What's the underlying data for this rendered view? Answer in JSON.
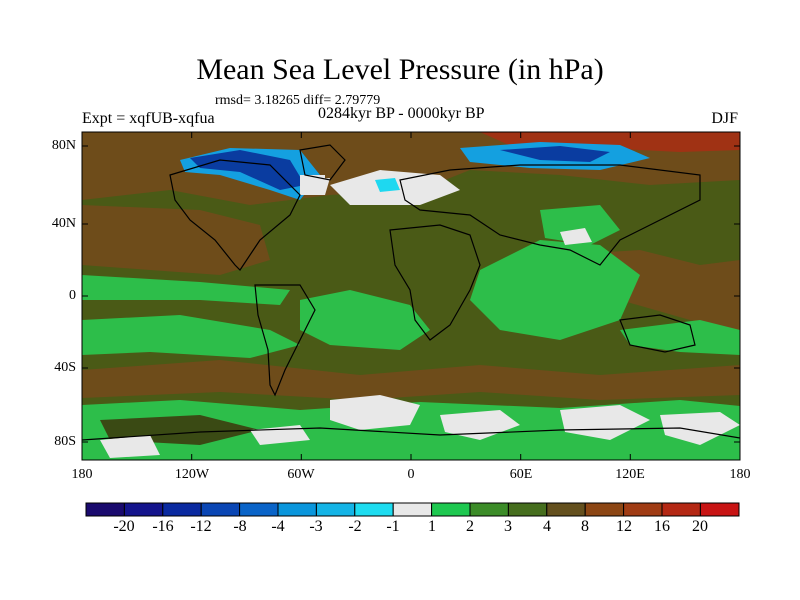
{
  "title": "Mean Sea Level Pressure (in hPa)",
  "stats": "rmsd= 3.18265 diff= 2.79779",
  "experiment": "Expt = xqfUB-xqfua",
  "period": "0284kyr BP - 0000kyr BP",
  "season": "DJF",
  "y_axis_labels": [
    "80N",
    "40N",
    "0",
    "40S",
    "80S"
  ],
  "x_axis_labels": [
    "180",
    "120W",
    "60W",
    "0",
    "60E",
    "120E",
    "180"
  ],
  "colorbar": {
    "labels": [
      "-20",
      "-16",
      "-12",
      "-8",
      "-4",
      "-3",
      "-2",
      "-1",
      "1",
      "2",
      "3",
      "4",
      "8",
      "12",
      "16",
      "20"
    ],
    "colors": [
      "#1a0a6e",
      "#14148c",
      "#0a2aa0",
      "#0a46b4",
      "#0a64c8",
      "#0a96dc",
      "#14b4e6",
      "#1edcf0",
      "#e8e8e8",
      "#1ec850",
      "#3c8c28",
      "#466e1e",
      "#64501e",
      "#8c4614",
      "#a03c14",
      "#b42814",
      "#c81414"
    ]
  },
  "map_colors": {
    "olive": "#4a5a16",
    "brown": "#6e4c1a",
    "darkolive": "#3a4a14",
    "green": "#2dbe4a",
    "white": "#e8e8e8",
    "red": "#a03214",
    "blue_dark": "#0a3ca0",
    "blue": "#14a0e0",
    "cyan": "#1ed8f0"
  }
}
